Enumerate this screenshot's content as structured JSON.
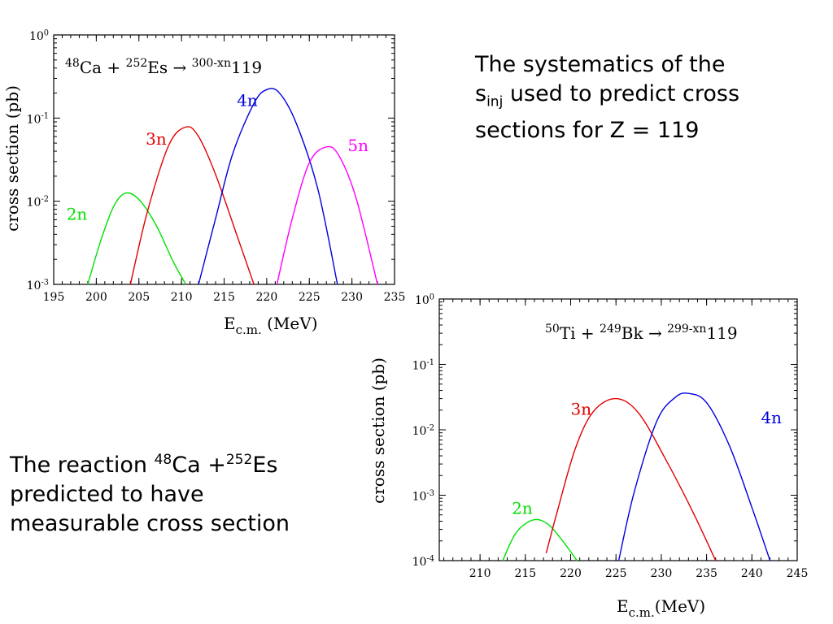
{
  "captions": {
    "top": {
      "line1": "The systematics of the",
      "line2_s": "s",
      "line2_sub": "inj",
      "line2_rest": " used to predict cross",
      "line3": "sections for Z = 119"
    },
    "bottom": {
      "pre": "The reaction ",
      "sup1": "48",
      "mid": "Ca +",
      "sup2": "252",
      "post": "Es",
      "line2": "predicted to have",
      "line3": "measurable cross section"
    }
  },
  "chart_data": [
    {
      "type": "line",
      "title": {
        "a_mass": "48",
        "a_el": "Ca + ",
        "b_mass": "252",
        "b_el": "Es → ",
        "c_mass": "300-xn",
        "c_el": "119"
      },
      "xlabel": {
        "main": "E",
        "sub": "c.m.",
        "rest": " (MeV)"
      },
      "ylabel": "cross section (pb)",
      "x_ticks": [
        "195",
        "200",
        "205",
        "210",
        "215",
        "220",
        "225",
        "230",
        "235"
      ],
      "y_ticks": [
        {
          "base": "10",
          "exp": "0"
        },
        {
          "base": "10",
          "exp": "-1"
        },
        {
          "base": "10",
          "exp": "-2"
        },
        {
          "base": "10",
          "exp": "-3"
        }
      ],
      "xlim": [
        195,
        235
      ],
      "ylim": [
        0.001,
        1
      ],
      "yscale": "log",
      "series": [
        {
          "name": "2n",
          "color": "#00e000",
          "x": [
            199.0,
            200.5,
            202.0,
            203.4,
            205.0,
            207.0,
            209.0,
            210.5
          ],
          "y": [
            0.001,
            0.0033,
            0.0085,
            0.0125,
            0.0105,
            0.0052,
            0.0019,
            0.001
          ]
        },
        {
          "name": "3n",
          "color": "#e00000",
          "x": [
            204.0,
            206.0,
            208.5,
            210.5,
            212.0,
            214.0,
            216.5,
            218.5
          ],
          "y": [
            0.001,
            0.0075,
            0.047,
            0.078,
            0.06,
            0.021,
            0.0039,
            0.001
          ]
        },
        {
          "name": "4n",
          "color": "#0000e0",
          "x": [
            212.0,
            214.0,
            216.0,
            218.5,
            220.0,
            221.5,
            223.5,
            226.0,
            228.3
          ],
          "y": [
            0.001,
            0.0062,
            0.037,
            0.15,
            0.22,
            0.2,
            0.085,
            0.014,
            0.001
          ]
        },
        {
          "name": "5n",
          "color": "#ff00ff",
          "x": [
            221.2,
            223.0,
            225.0,
            227.0,
            228.5,
            230.5,
            233.0
          ],
          "y": [
            0.001,
            0.0062,
            0.029,
            0.045,
            0.035,
            0.0108,
            0.001
          ]
        }
      ],
      "labels": [
        {
          "text": "2n",
          "x": 196.5,
          "y": 0.006
        },
        {
          "text": "3n",
          "x": 205.8,
          "y": 0.048
        },
        {
          "text": "4n",
          "x": 216.5,
          "y": 0.14
        },
        {
          "text": "5n",
          "x": 229.5,
          "y": 0.04
        }
      ]
    },
    {
      "type": "line",
      "title": {
        "a_mass": "50",
        "a_el": "Ti + ",
        "b_mass": "249",
        "b_el": "Bk → ",
        "c_mass": "299-xn",
        "c_el": "119"
      },
      "xlabel": {
        "main": "E",
        "sub": "c.m.",
        "rest": "(MeV)"
      },
      "ylabel": "cross section (pb)",
      "x_ticks": [
        "210",
        "215",
        "220",
        "225",
        "230",
        "235",
        "240",
        "245"
      ],
      "y_ticks": [
        {
          "base": "10",
          "exp": "0"
        },
        {
          "base": "10",
          "exp": "-1"
        },
        {
          "base": "10",
          "exp": "-2"
        },
        {
          "base": "10",
          "exp": "-3"
        },
        {
          "base": "10",
          "exp": "-4"
        }
      ],
      "xlim": [
        205.5,
        245
      ],
      "ylim": [
        0.0001,
        1
      ],
      "yscale": "log",
      "series": [
        {
          "name": "2n",
          "color": "#00e000",
          "x": [
            212.5,
            214.0,
            215.9,
            217.5,
            219.0,
            220.7
          ],
          "y": [
            0.0001,
            0.00027,
            0.00042,
            0.00036,
            0.00021,
            0.0001
          ]
        },
        {
          "name": "3n",
          "color": "#e00000",
          "x": [
            217.3,
            218.5,
            220.5,
            222.5,
            225.0,
            227.5,
            230.5,
            233.5,
            236.0
          ],
          "y": [
            0.00013,
            0.00055,
            0.0051,
            0.019,
            0.03,
            0.018,
            0.0035,
            0.00055,
            0.0001
          ]
        },
        {
          "name": "4n",
          "color": "#0000e0",
          "x": [
            225.3,
            227.0,
            229.5,
            231.5,
            233.0,
            235.0,
            237.5,
            240.0,
            242.0
          ],
          "y": [
            0.0001,
            0.0011,
            0.0135,
            0.031,
            0.036,
            0.026,
            0.0058,
            0.00065,
            0.0001
          ]
        }
      ],
      "labels": [
        {
          "text": "2n",
          "x": 213.5,
          "y": 0.00052
        },
        {
          "text": "3n",
          "x": 220.0,
          "y": 0.017
        },
        {
          "text": "4n",
          "x": 241.0,
          "y": 0.0125
        }
      ]
    }
  ]
}
